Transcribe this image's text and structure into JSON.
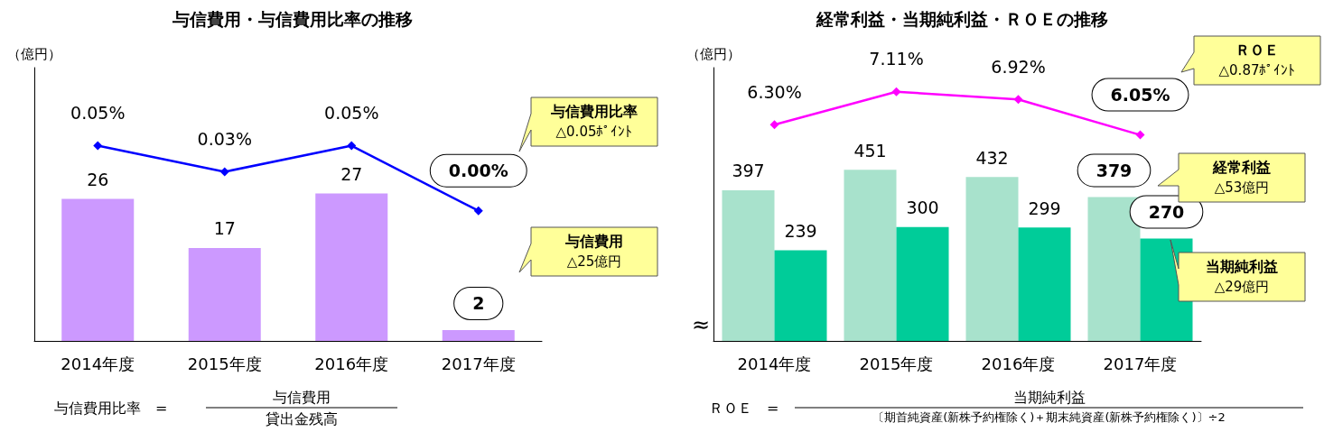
{
  "chart_data": [
    {
      "type": "bar",
      "title": "与信費用・与信費用比率の推移",
      "ylabel": "（億円）",
      "categories": [
        "2014年度",
        "2015年度",
        "2016年度",
        "2017年度"
      ],
      "grid": false,
      "marker": "diamond",
      "ylim": [
        0,
        50
      ],
      "y2lim": [
        -0.1,
        0.11
      ],
      "series": [
        {
          "type": "bar",
          "color": "#cc99ff",
          "values": [
            26,
            17,
            27,
            2
          ],
          "value_labels": [
            "26",
            "17",
            "27",
            "2"
          ]
        },
        {
          "type": "line",
          "axis": "y2",
          "color": "#0000ff",
          "values": [
            0.05,
            0.03,
            0.05,
            0.0
          ],
          "value_labels": [
            "0.05%",
            "0.03%",
            "0.05%",
            "0.00%"
          ]
        }
      ],
      "annotations": [
        "与信費用比率\n△0.05ﾎﾟｲﾝﾄ",
        "与信費用\n△25億円",
        "与信費用比率　=",
        "与信費用",
        "貸出金残高"
      ]
    },
    {
      "type": "bar",
      "title": "経常利益・当期純利益・ＲＯＥの推移",
      "ylabel": "（億円）",
      "categories": [
        "2014年度",
        "2015年度",
        "2016年度",
        "2017年度"
      ],
      "grid": false,
      "marker": "diamond",
      "ylim": [
        0,
        720
      ],
      "y2lim": [
        1.0,
        7.7
      ],
      "series": [
        {
          "type": "bar",
          "color": "#a8e2cc",
          "values": [
            397,
            451,
            432,
            379
          ],
          "value_labels": [
            "397",
            "451",
            "432",
            "379"
          ]
        },
        {
          "type": "bar",
          "color": "#00cc99",
          "values": [
            239,
            300,
            299,
            270
          ],
          "value_labels": [
            "239",
            "300",
            "299",
            "270"
          ]
        },
        {
          "type": "line",
          "axis": "y2",
          "color": "#ff00ff",
          "values": [
            6.3,
            7.11,
            6.92,
            6.05
          ],
          "value_labels": [
            "6.30%",
            "7.11%",
            "6.92%",
            "6.05%"
          ]
        }
      ],
      "annotations": [
        "ＲＯＥ\n△0.87ﾎﾟｲﾝﾄ",
        "経常利益\n△53億円",
        "当期純利益\n△29億円",
        "≈",
        "ＲＯＥ　=",
        "当期純利益",
        "〔期首純資産(新株予約権除く)＋期末純資産(新株予約権除く)〕÷2"
      ]
    }
  ]
}
